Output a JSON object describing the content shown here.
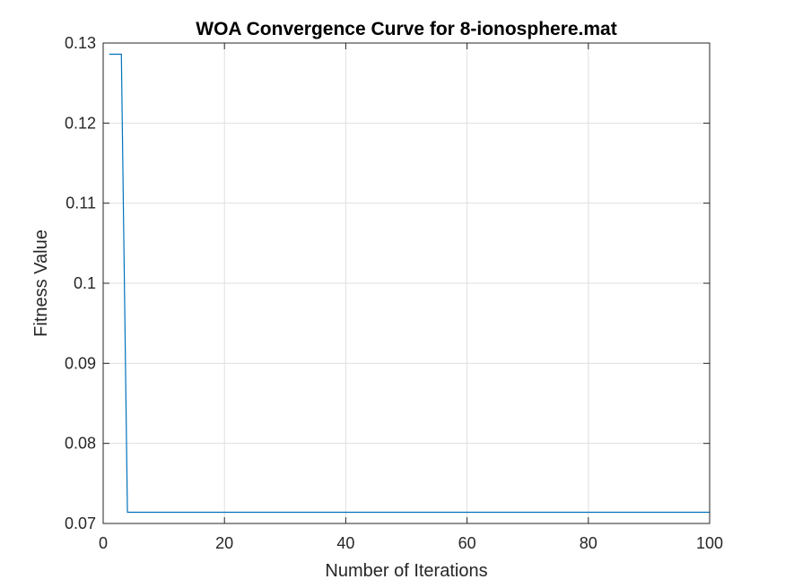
{
  "chart_data": {
    "type": "line",
    "title": "WOA Convergence Curve for 8-ionosphere.mat",
    "xlabel": "Number of Iterations",
    "ylabel": "Fitness Value",
    "xlim": [
      0,
      100
    ],
    "ylim": [
      0.07,
      0.13
    ],
    "xticks": [
      0,
      20,
      40,
      60,
      80,
      100
    ],
    "xtick_labels": [
      "0",
      "20",
      "40",
      "60",
      "80",
      "100"
    ],
    "yticks": [
      0.07,
      0.08,
      0.09,
      0.1,
      0.11,
      0.12,
      0.13
    ],
    "ytick_labels": [
      "0.07",
      "0.08",
      "0.09",
      "0.1",
      "0.11",
      "0.12",
      "0.13"
    ],
    "grid": true,
    "series": [
      {
        "color": "#0072bd",
        "x": [
          1,
          2,
          3,
          4,
          100
        ],
        "y": [
          0.1286,
          0.1286,
          0.1286,
          0.0714,
          0.0714
        ]
      }
    ]
  }
}
